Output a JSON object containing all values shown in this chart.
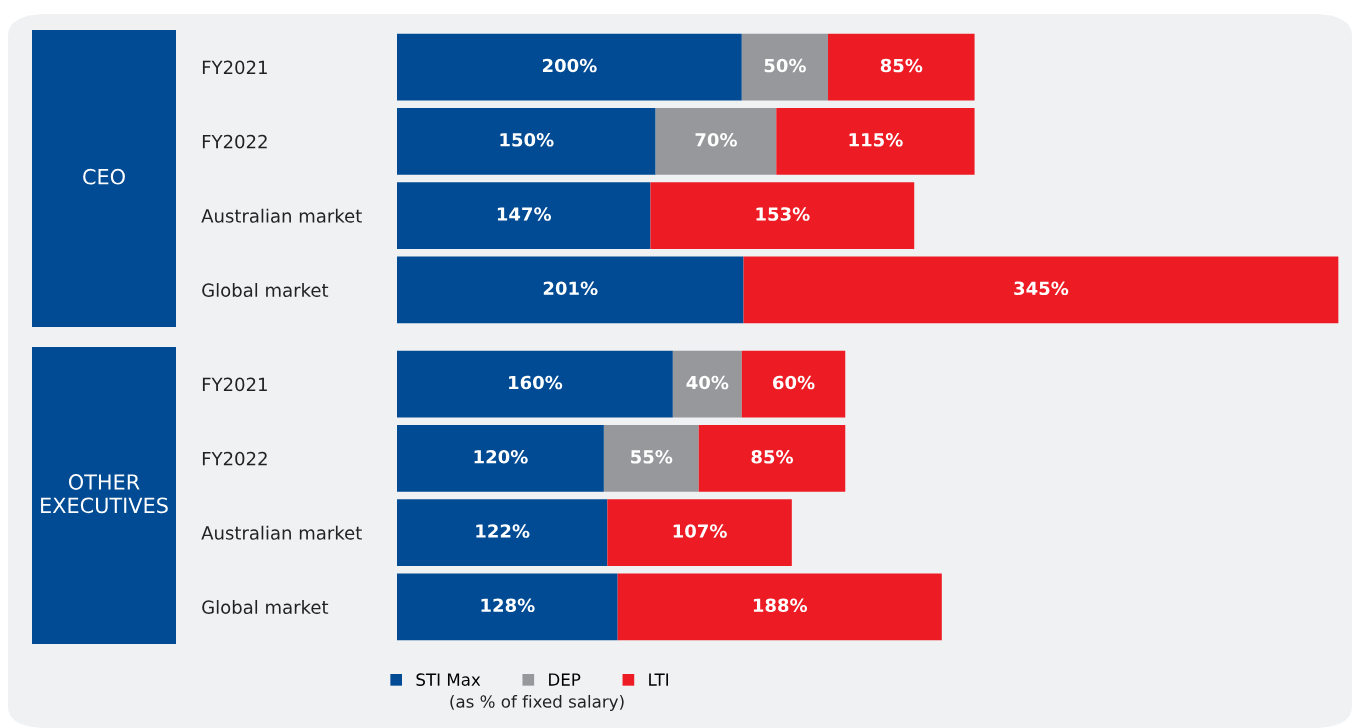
{
  "chart_data": [
    {
      "type": "bar",
      "orientation": "horizontal",
      "stacked": true,
      "title": "CEO",
      "categories": [
        "FY2021",
        "FY2022",
        "Australian market",
        "Global market"
      ],
      "legend": false,
      "series": [
        {
          "color": "#004b93",
          "values": [
            200,
            150,
            147,
            201
          ],
          "value_labels": [
            "200%",
            "150%",
            "147%",
            "201%"
          ]
        },
        {
          "color": "#97989b",
          "values": [
            50,
            70,
            null,
            null
          ],
          "value_labels": [
            "50%",
            "70%",
            null,
            null
          ]
        },
        {
          "color": "#ed1c24",
          "values": [
            85,
            115,
            153,
            345
          ],
          "value_labels": [
            "85%",
            "115%",
            "153%",
            "345%"
          ]
        }
      ]
    },
    {
      "type": "bar",
      "orientation": "horizontal",
      "stacked": true,
      "title": "OTHER EXECUTIVES",
      "categories": [
        "FY2021",
        "FY2022",
        "Australian market",
        "Global market"
      ],
      "legend": "bottom",
      "annotations": [
        "(as % of fixed salary)"
      ],
      "series": [
        {
          "name": "STI Max",
          "color": "#004b93",
          "values": [
            160,
            120,
            122,
            128
          ],
          "value_labels": [
            "160%",
            "120%",
            "122%",
            "128%"
          ]
        },
        {
          "name": "DEP",
          "color": "#97989b",
          "values": [
            40,
            55,
            null,
            null
          ],
          "value_labels": [
            "40%",
            "55%",
            null,
            null
          ]
        },
        {
          "name": "LTI",
          "color": "#ed1c24",
          "values": [
            60,
            85,
            107,
            188
          ],
          "value_labels": [
            "60%",
            "85%",
            "107%",
            "188%"
          ]
        }
      ]
    }
  ]
}
